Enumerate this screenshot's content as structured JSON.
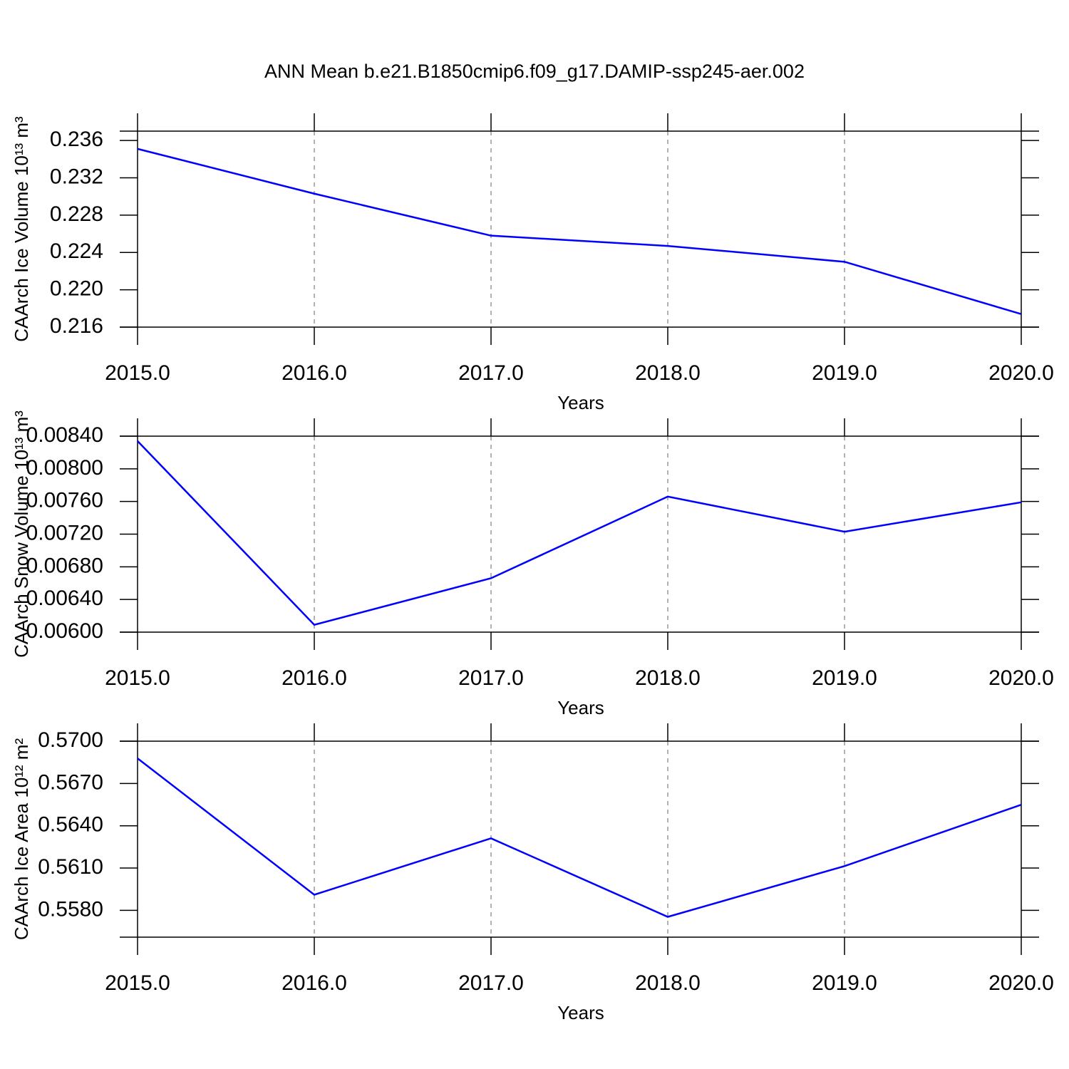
{
  "chart_data": [
    {
      "type": "line",
      "title": "ANN Mean b.e21.B1850cmip6.f09_g17.DAMIP-ssp245-aer.002",
      "xlabel": "Years",
      "ylabel": "CAArch Ice Volume 10¹³ m³",
      "x": [
        2015,
        2016,
        2017,
        2018,
        2019,
        2020
      ],
      "series": [
        {
          "color": "#0000ff",
          "values": [
            0.2351,
            0.2303,
            0.2258,
            0.2247,
            0.223,
            0.2174
          ]
        }
      ],
      "xlim": [
        2015,
        2020
      ],
      "xticks": [
        {
          "value": 2015,
          "label": "2015.0"
        },
        {
          "value": 2016,
          "label": "2016.0"
        },
        {
          "value": 2017,
          "label": "2017.0"
        },
        {
          "value": 2018,
          "label": "2018.0"
        },
        {
          "value": 2019,
          "label": "2019.0"
        },
        {
          "value": 2020,
          "label": "2020.0"
        }
      ],
      "ylim": [
        0.216,
        0.237
      ],
      "yticks": [
        0.216,
        {
          "value": 0.22,
          "label": "0.220"
        },
        0.224,
        0.228,
        0.232,
        0.236
      ],
      "xgrid": true
    },
    {
      "type": "line",
      "xlabel": "Years",
      "ylabel": "CAArch Snow Volume 10¹³ m³",
      "x": [
        2015,
        2016,
        2017,
        2018,
        2019,
        2020
      ],
      "series": [
        {
          "color": "#0000ff",
          "values": [
            0.00834,
            0.00609,
            0.00666,
            0.00766,
            0.00723,
            0.00759
          ]
        }
      ],
      "xlim": [
        2015,
        2020
      ],
      "xticks": [
        {
          "value": 2015,
          "label": "2015.0"
        },
        {
          "value": 2016,
          "label": "2016.0"
        },
        {
          "value": 2017,
          "label": "2017.0"
        },
        {
          "value": 2018,
          "label": "2018.0"
        },
        {
          "value": 2019,
          "label": "2019.0"
        },
        {
          "value": 2020,
          "label": "2020.0"
        }
      ],
      "ylim": [
        0.006,
        0.0084
      ],
      "yticks": [
        {
          "value": 0.006,
          "label": "0.00600"
        },
        {
          "value": 0.0064,
          "label": "0.00640"
        },
        {
          "value": 0.0068,
          "label": "0.00680"
        },
        {
          "value": 0.0072,
          "label": "0.00720"
        },
        {
          "value": 0.0076,
          "label": "0.00760"
        },
        {
          "value": 0.008,
          "label": "0.00800"
        },
        {
          "value": 0.0084,
          "label": "0.00840"
        }
      ],
      "xgrid": true
    },
    {
      "type": "line",
      "xlabel": "Years",
      "ylabel": "CAArch Ice Area 10¹² m²",
      "x": [
        2015,
        2016,
        2017,
        2018,
        2019,
        2020
      ],
      "series": [
        {
          "color": "#0000ff",
          "values": [
            0.56878,
            0.55911,
            0.56311,
            0.55754,
            0.56114,
            0.56549
          ]
        }
      ],
      "xlim": [
        2015,
        2020
      ],
      "xticks": [
        {
          "value": 2015,
          "label": "2015.0"
        },
        {
          "value": 2016,
          "label": "2016.0"
        },
        {
          "value": 2017,
          "label": "2017.0"
        },
        {
          "value": 2018,
          "label": "2018.0"
        },
        {
          "value": 2019,
          "label": "2019.0"
        },
        {
          "value": 2020,
          "label": "2020.0"
        }
      ],
      "ylim": [
        0.5561,
        0.57
      ],
      "yticks": [
        {
          "value": 0.558,
          "label": "0.5580"
        },
        {
          "value": 0.561,
          "label": "0.5610"
        },
        {
          "value": 0.564,
          "label": "0.5640"
        },
        {
          "value": 0.567,
          "label": "0.5670"
        },
        {
          "value": 0.57,
          "label": "0.5700"
        }
      ],
      "xgrid": true
    }
  ]
}
